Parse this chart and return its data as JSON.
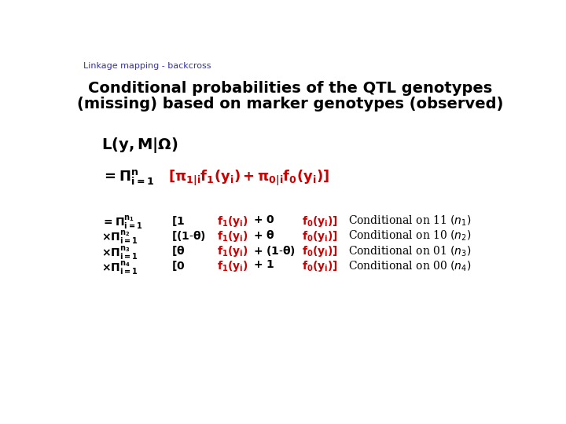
{
  "background_color": "#ffffff",
  "header_text": "Linkage mapping - backcross",
  "header_color": "#3333aa",
  "header_fontsize": 8,
  "title_line1": "Conditional probabilities of the QTL genotypes",
  "title_line2": "(missing) based on marker genotypes (observed)",
  "title_fontsize": 14,
  "title_color": "#000000",
  "body_color": "#000000",
  "red_color": "#cc0000",
  "body_fontsize": 11,
  "small_fontsize": 10
}
